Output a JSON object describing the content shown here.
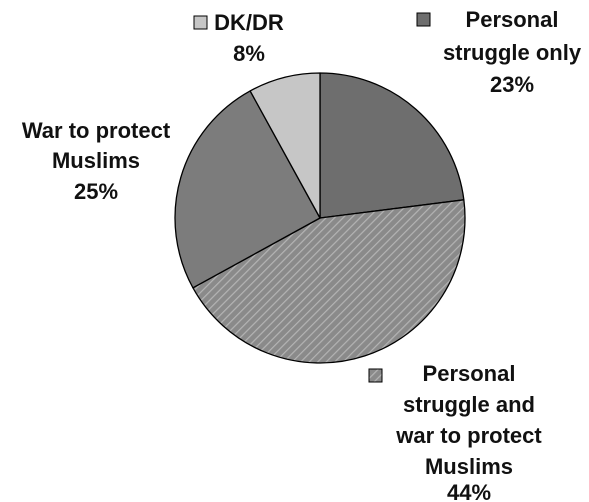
{
  "chart_data": {
    "type": "pie",
    "slices": [
      {
        "name": "Personal struggle only",
        "label_lines": [
          "Personal",
          "struggle only"
        ],
        "value": 23,
        "value_label": "23%",
        "color": "#6e6e6e",
        "pattern": "solid"
      },
      {
        "name": "Personal struggle and war to protect Muslims",
        "label_lines": [
          "Personal",
          "struggle and",
          "war to protect",
          "Muslims"
        ],
        "value": 44,
        "value_label": "44%",
        "color": "#8a8a8a",
        "pattern": "diagonal-hatch"
      },
      {
        "name": "War to protect Muslims",
        "label_lines": [
          "War to protect",
          "Muslims"
        ],
        "value": 25,
        "value_label": "25%",
        "color": "#7c7c7c",
        "pattern": "solid"
      },
      {
        "name": "DK/DR",
        "label_lines": [
          "DK/DR"
        ],
        "value": 8,
        "value_label": "8%",
        "color": "#c6c6c6",
        "pattern": "solid"
      }
    ],
    "start_angle": "12 o'clock",
    "direction": "clockwise",
    "legend": "inline labels with color markers"
  }
}
